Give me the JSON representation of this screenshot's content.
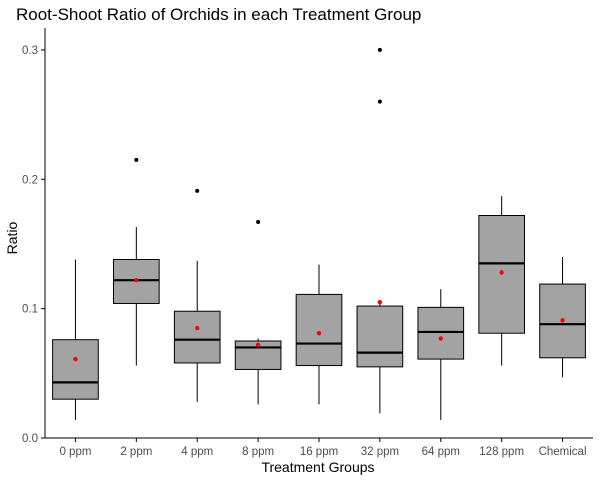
{
  "chart_data": {
    "type": "boxplot",
    "title": "Root-Shoot Ratio of Orchids in each Treatment Group",
    "xlabel": "Treatment Groups",
    "ylabel": "Ratio",
    "ylim": [
      0,
      0.31
    ],
    "yticks": [
      0.0,
      0.1,
      0.2,
      0.3
    ],
    "ytick_labels": [
      "0.0",
      "0.1",
      "0.2",
      "0.3"
    ],
    "grid": false,
    "legend": "none",
    "categories": [
      "0 ppm",
      "2 ppm",
      "4 ppm",
      "8 ppm",
      "16 ppm",
      "32 ppm",
      "64 ppm",
      "128 ppm",
      "Chemical"
    ],
    "boxes": [
      {
        "category": "0 ppm",
        "whisker_low": 0.014,
        "q1": 0.03,
        "median": 0.043,
        "q3": 0.076,
        "whisker_high": 0.138,
        "mean": 0.061,
        "outliers": []
      },
      {
        "category": "2 ppm",
        "whisker_low": 0.056,
        "q1": 0.104,
        "median": 0.122,
        "q3": 0.138,
        "whisker_high": 0.163,
        "mean": 0.122,
        "outliers": [
          0.215
        ]
      },
      {
        "category": "4 ppm",
        "whisker_low": 0.028,
        "q1": 0.058,
        "median": 0.076,
        "q3": 0.098,
        "whisker_high": 0.137,
        "mean": 0.085,
        "outliers": [
          0.191
        ]
      },
      {
        "category": "8 ppm",
        "whisker_low": 0.026,
        "q1": 0.053,
        "median": 0.07,
        "q3": 0.075,
        "whisker_high": 0.077,
        "mean": 0.072,
        "outliers": [
          0.167
        ]
      },
      {
        "category": "16 ppm",
        "whisker_low": 0.026,
        "q1": 0.056,
        "median": 0.073,
        "q3": 0.111,
        "whisker_high": 0.134,
        "mean": 0.081,
        "outliers": []
      },
      {
        "category": "32 ppm",
        "whisker_low": 0.019,
        "q1": 0.055,
        "median": 0.066,
        "q3": 0.102,
        "whisker_high": 0.104,
        "mean": 0.105,
        "outliers": [
          0.26,
          0.3
        ]
      },
      {
        "category": "64 ppm",
        "whisker_low": 0.014,
        "q1": 0.061,
        "median": 0.082,
        "q3": 0.101,
        "whisker_high": 0.115,
        "mean": 0.077,
        "outliers": []
      },
      {
        "category": "128 ppm",
        "whisker_low": 0.056,
        "q1": 0.081,
        "median": 0.135,
        "q3": 0.172,
        "whisker_high": 0.187,
        "mean": 0.128,
        "outliers": []
      },
      {
        "category": "Chemical",
        "whisker_low": 0.047,
        "q1": 0.062,
        "median": 0.088,
        "q3": 0.119,
        "whisker_high": 0.14,
        "mean": 0.091,
        "outliers": []
      }
    ],
    "colors": {
      "box_fill": "#a3a3a3",
      "box_stroke": "#000000",
      "median": "#000000",
      "mean_point": "#ff0000",
      "outlier_point": "#000000",
      "axis_line": "#000000",
      "tick_label": "#4d4d4d",
      "background": "#ffffff"
    }
  }
}
